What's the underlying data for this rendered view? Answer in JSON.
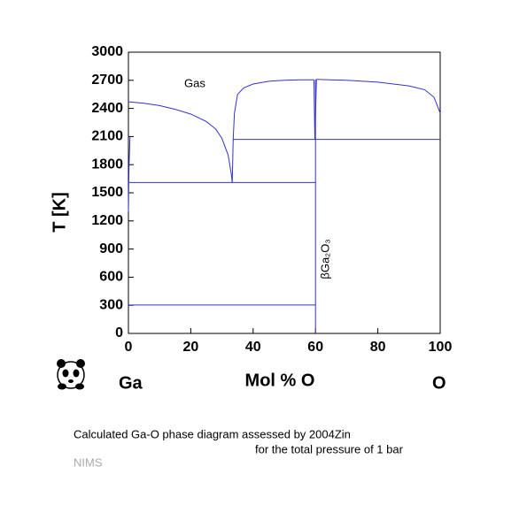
{
  "chart_data": {
    "type": "line",
    "ylabel": "T [K]",
    "xlabel": "Mol % O",
    "x_end_labels": [
      "Ga",
      "O"
    ],
    "annotations": [
      "Gas",
      "βGa₂O₃"
    ],
    "xlim": [
      0,
      100
    ],
    "ylim": [
      0,
      3000
    ],
    "xticks": [
      0,
      20,
      40,
      60,
      80,
      100
    ],
    "yticks": [
      0,
      300,
      600,
      900,
      1200,
      1500,
      1800,
      2100,
      2400,
      2700,
      3000
    ],
    "series": [
      {
        "color": "#3333cc",
        "x": [
          0,
          5,
          10,
          15,
          20,
          25,
          28,
          30,
          32,
          33,
          33.3
        ],
        "y": [
          2470,
          2455,
          2430,
          2390,
          2340,
          2260,
          2180,
          2080,
          1900,
          1700,
          1610
        ]
      },
      {
        "color": "#3333cc",
        "x": [
          33.3,
          33.6,
          34,
          35,
          37,
          40,
          45,
          50,
          55,
          59.5
        ],
        "y": [
          1610,
          2070,
          2350,
          2550,
          2620,
          2660,
          2690,
          2700,
          2705,
          2705
        ]
      },
      {
        "color": "#3333cc",
        "x": [
          60.3,
          70,
          80,
          90,
          95,
          98,
          100
        ],
        "y": [
          2710,
          2700,
          2680,
          2640,
          2600,
          2520,
          2350
        ]
      },
      {
        "color": "#3333cc",
        "x": [
          60,
          60
        ],
        "y": [
          0,
          2710
        ]
      },
      {
        "color": "#3333cc",
        "x": [
          59.5,
          59.8,
          60.3
        ],
        "y": [
          2705,
          2070,
          2710
        ]
      },
      {
        "color": "#3333cc",
        "x": [
          0,
          0.2,
          0.5
        ],
        "y": [
          1300,
          1800,
          2100
        ]
      },
      {
        "color": "#3333cc",
        "x": [
          0,
          60
        ],
        "y": [
          1610,
          1610
        ]
      },
      {
        "color": "#3333cc",
        "x": [
          33.5,
          100
        ],
        "y": [
          2070,
          2070
        ]
      },
      {
        "color": "#3333cc",
        "x": [
          0,
          60
        ],
        "y": [
          303,
          303
        ]
      }
    ],
    "caption": [
      "Calculated Ga-O phase diagram assessed by 2004Zin",
      "for the total pressure of 1 bar"
    ],
    "source": "NIMS"
  }
}
